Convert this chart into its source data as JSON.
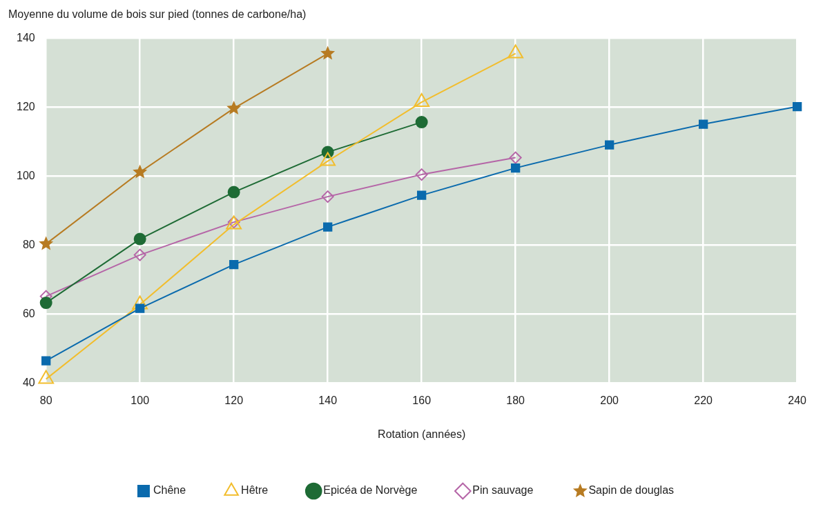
{
  "chart_data": {
    "type": "line",
    "ylabel": "Moyenne du volume de bois sur pied (tonnes de carbone/ha)",
    "xlabel": "Rotation (années)",
    "xlim": [
      80,
      240
    ],
    "xticks": [
      80,
      100,
      120,
      140,
      160,
      180,
      200,
      220,
      240
    ],
    "ylim": [
      40,
      140
    ],
    "yticks": [
      40,
      60,
      80,
      100,
      120,
      140
    ],
    "grid": true,
    "legend": "bottom",
    "line_style": "solid",
    "series": [
      {
        "name": "Chêne",
        "color": "#0a6aad",
        "marker": "square",
        "x": [
          80,
          100,
          120,
          140,
          160,
          180,
          200,
          220,
          240
        ],
        "values": [
          46.5,
          61.7,
          74.4,
          85.3,
          94.5,
          102.4,
          109.1,
          115.1,
          120.2
        ]
      },
      {
        "name": "Hêtre",
        "color": "#f2bd2c",
        "marker": "triangle",
        "x": [
          80,
          100,
          120,
          140,
          160,
          180
        ],
        "values": [
          41.2,
          62.8,
          86,
          104.4,
          121.5,
          135.6
        ]
      },
      {
        "name": "Epicéa de Norvège",
        "color": "#1e6b35",
        "marker": "circle",
        "x": [
          80,
          100,
          120,
          140,
          160
        ],
        "values": [
          63.3,
          81.8,
          95.4,
          107,
          115.7
        ]
      },
      {
        "name": "Pin sauvage",
        "color": "#b565a7",
        "marker": "diamond",
        "x": [
          80,
          100,
          120,
          140,
          160,
          180
        ],
        "values": [
          65.2,
          77.2,
          86.7,
          94.1,
          100.5,
          105.4
        ]
      },
      {
        "name": "Sapin de douglas",
        "color": "#b77b22",
        "marker": "star",
        "x": [
          80,
          100,
          120,
          140
        ],
        "values": [
          80.4,
          101.2,
          119.7,
          135.6
        ]
      }
    ]
  }
}
